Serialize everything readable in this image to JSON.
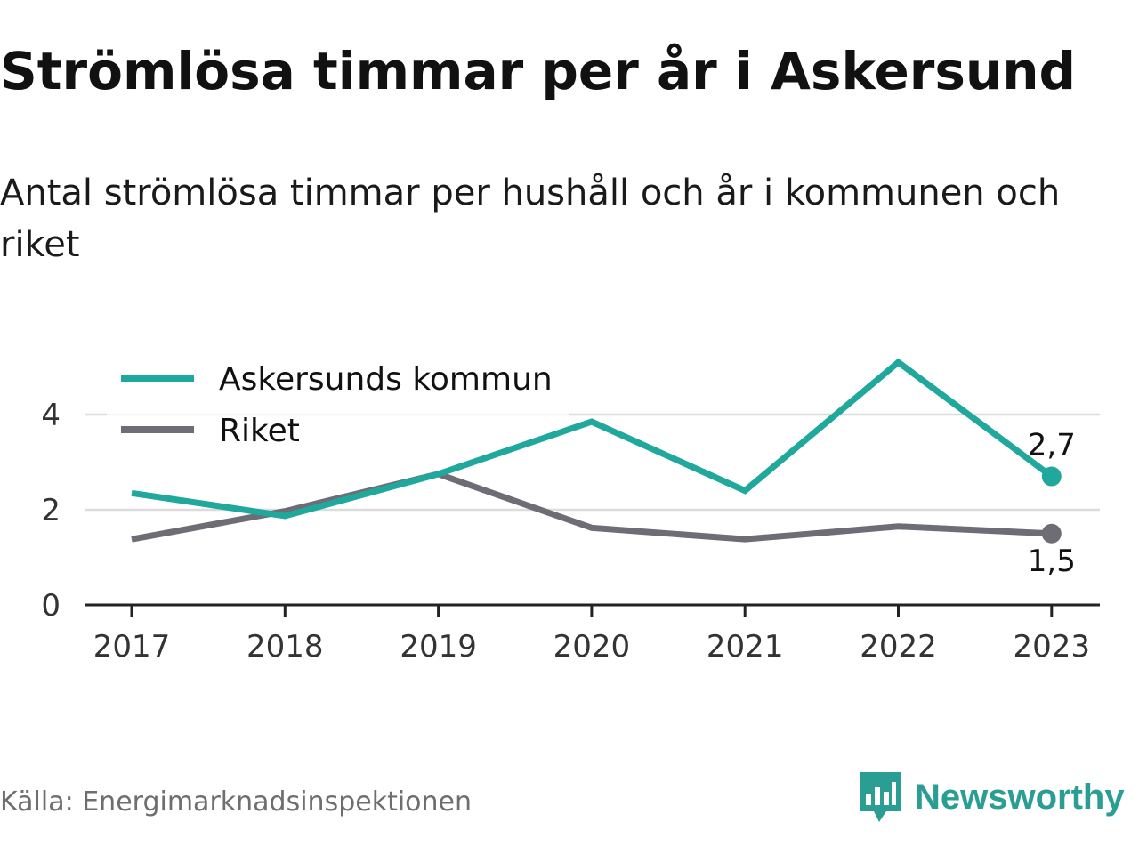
{
  "header": {
    "title": "Strömlösa timmar per år i Askersund",
    "subtitle": "Antal strömlösa timmar per hushåll och år i kommunen och riket"
  },
  "footer": {
    "source": "Källa: Energimarknadsinspektionen",
    "brand": "Newsworthy",
    "brand_icon": "newsworthy-logo-icon"
  },
  "colors": {
    "askersund": "#1fa89b",
    "riket": "#6e6d75",
    "grid": "#dcdcdc",
    "axis": "#222222",
    "brand": "#2b9e94"
  },
  "chart_data": {
    "type": "line",
    "categories": [
      "2017",
      "2018",
      "2019",
      "2020",
      "2021",
      "2022",
      "2023"
    ],
    "series": [
      {
        "name": "Askersunds kommun",
        "values": [
          2.35,
          1.87,
          2.75,
          3.85,
          2.4,
          5.1,
          2.7
        ],
        "end_label": "2,7"
      },
      {
        "name": "Riket",
        "values": [
          1.38,
          1.97,
          2.75,
          1.62,
          1.38,
          1.65,
          1.5
        ],
        "end_label": "1,5"
      }
    ],
    "ylim": [
      0,
      5.2
    ],
    "yticks": [
      "0",
      "2",
      "4"
    ],
    "ytick_values": [
      0,
      2,
      4
    ],
    "grid": true,
    "legend_position": "top-left"
  }
}
